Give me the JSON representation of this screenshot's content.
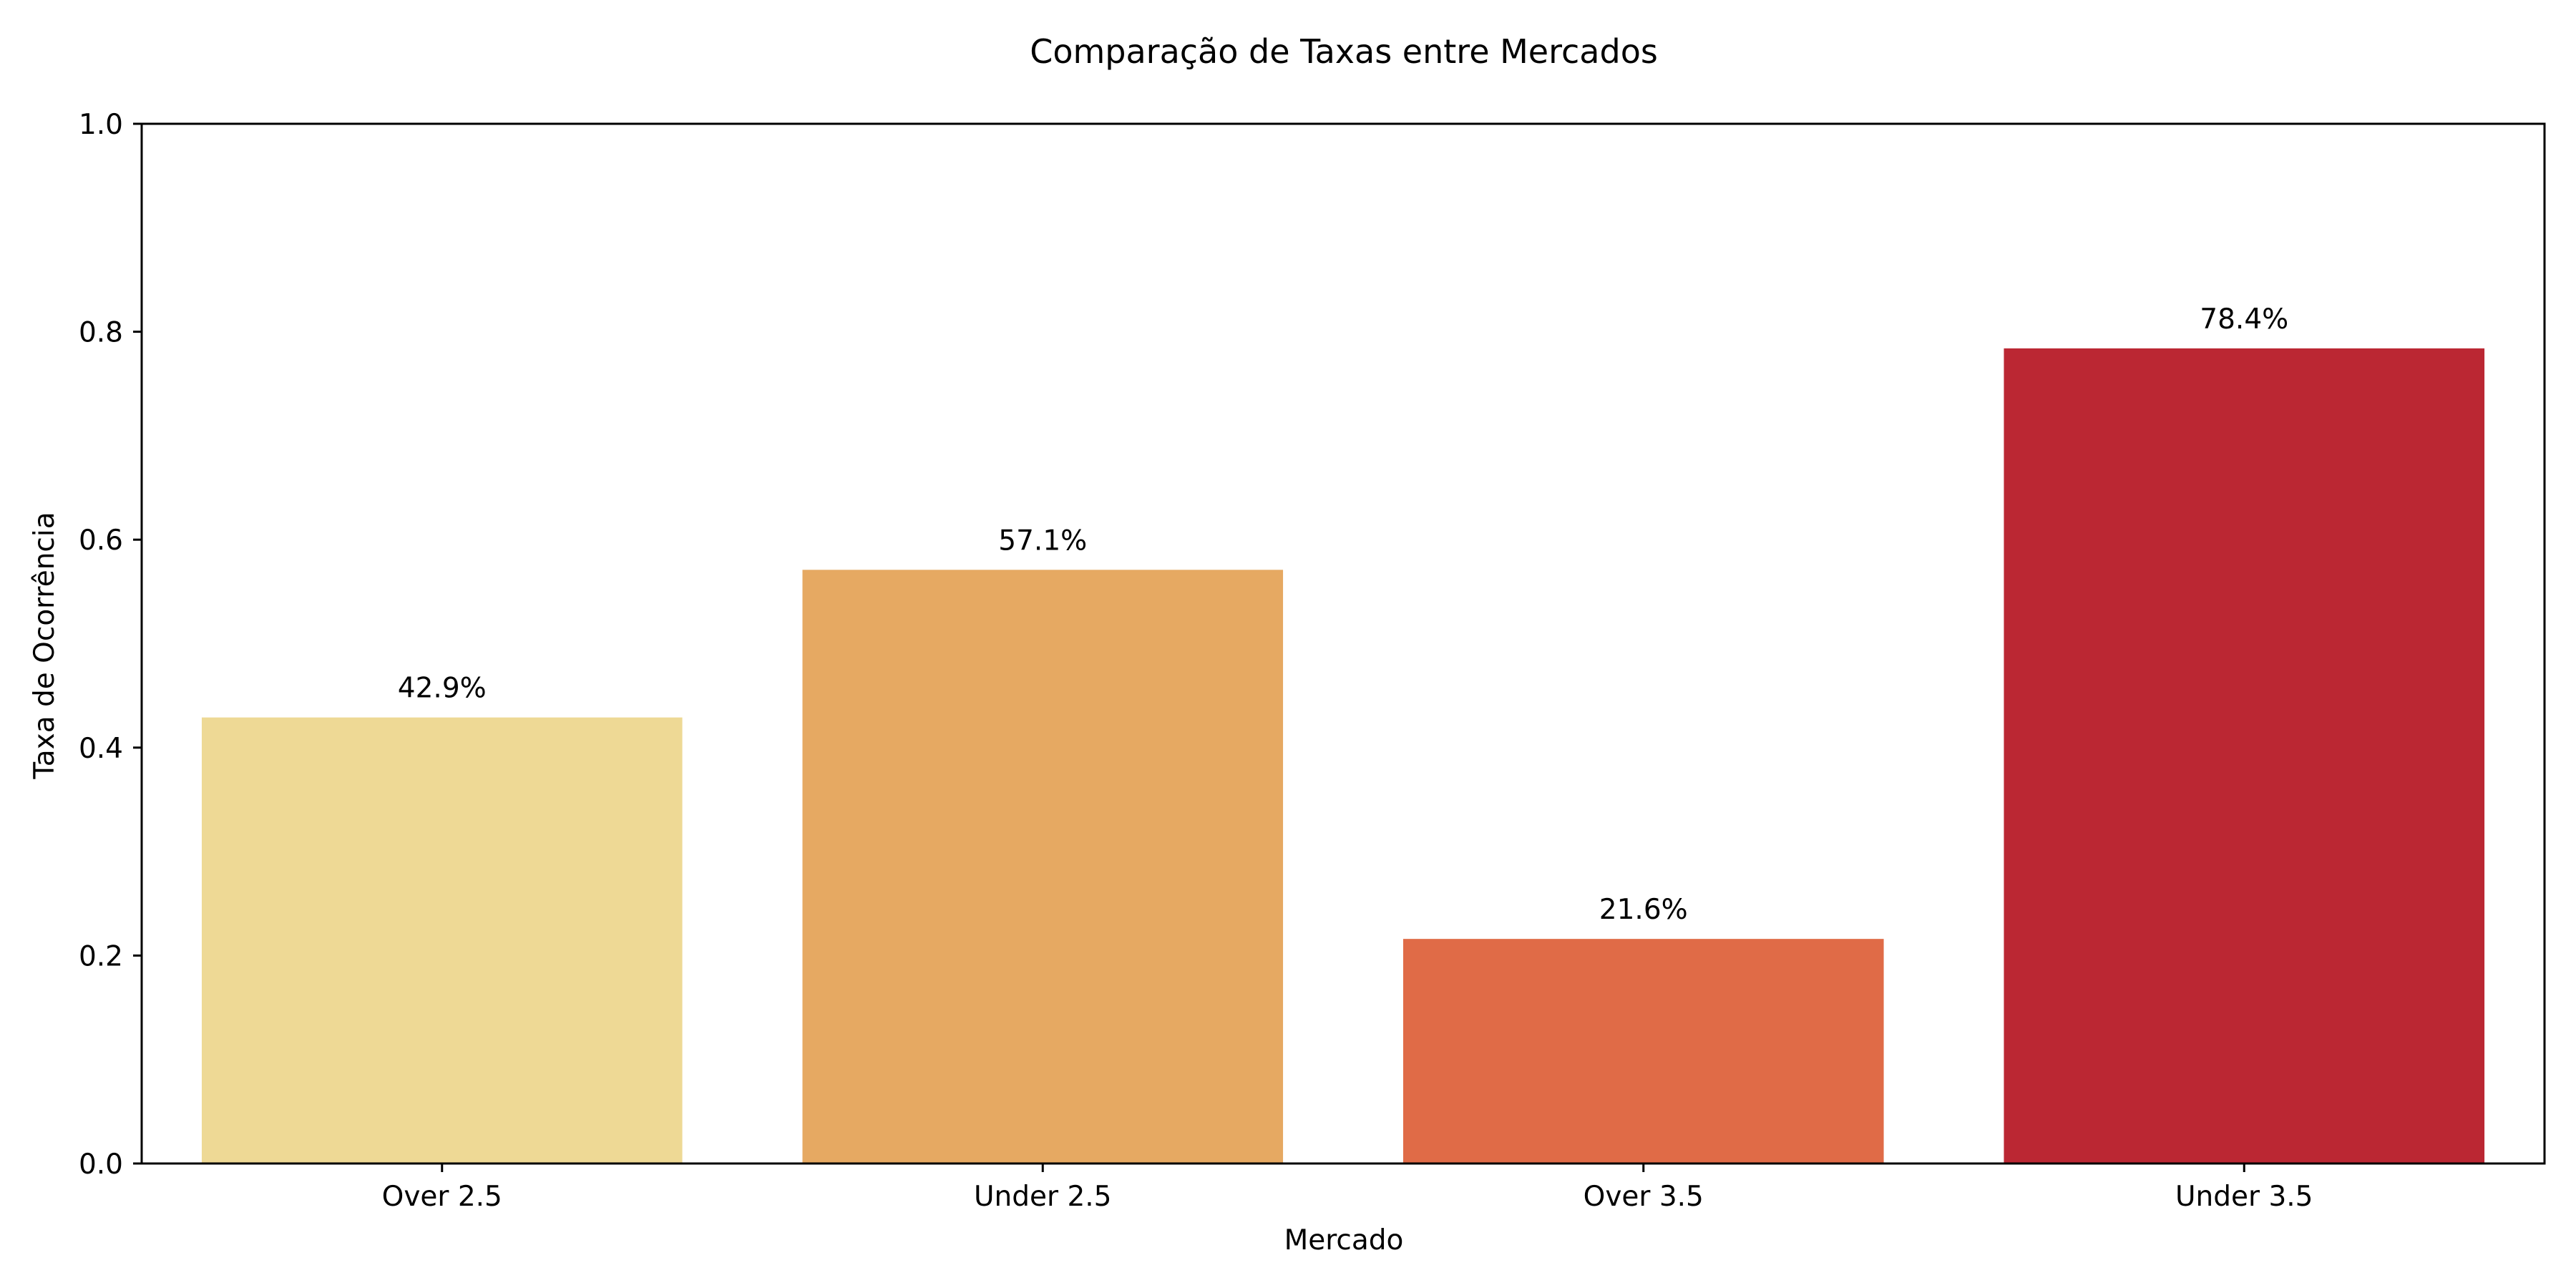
{
  "chart_data": {
    "type": "bar",
    "title": "Comparação de Taxas entre Mercados",
    "xlabel": "Mercado",
    "ylabel": "Taxa de Ocorrência",
    "categories": [
      "Over 2.5",
      "Under 2.5",
      "Over 3.5",
      "Under 3.5"
    ],
    "values": [
      0.429,
      0.571,
      0.216,
      0.784
    ],
    "value_labels": [
      "42.9%",
      "57.1%",
      "21.6%",
      "78.4%"
    ],
    "colors": [
      "#eed995",
      "#e6a962",
      "#e06b47",
      "#bb2733"
    ],
    "ylim": [
      0,
      1.0
    ],
    "yticks": [
      0.0,
      0.2,
      0.4,
      0.6,
      0.8,
      1.0
    ],
    "ytick_labels": [
      "0.0",
      "0.2",
      "0.4",
      "0.6",
      "0.8",
      "1.0"
    ],
    "grid": false,
    "legend": "none"
  }
}
